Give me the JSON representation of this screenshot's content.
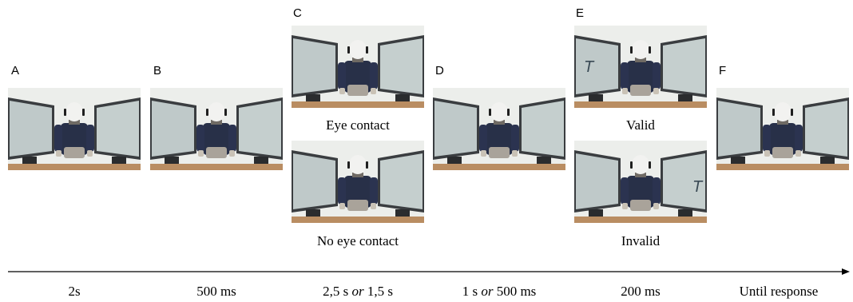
{
  "panels": {
    "A": {
      "letter": "A"
    },
    "B": {
      "letter": "B"
    },
    "C": {
      "letter": "C",
      "top_caption": "Eye contact",
      "bottom_caption": "No eye contact"
    },
    "D": {
      "letter": "D"
    },
    "E": {
      "letter": "E",
      "top_caption": "Valid",
      "bottom_caption": "Invalid",
      "target_letter": "T"
    },
    "F": {
      "letter": "F"
    }
  },
  "timeline": {
    "A": "2s",
    "B": "500 ms",
    "C": {
      "a": "2,5 s ",
      "or": "or",
      "b": " 1,5 s"
    },
    "D": {
      "a": "1 s ",
      "or": "or",
      "b": " 500 ms"
    },
    "E": "200 ms",
    "F": "Until response"
  },
  "image_content": [
    "humanoid-robot",
    "left-monitor",
    "right-monitor",
    "wooden-table"
  ]
}
